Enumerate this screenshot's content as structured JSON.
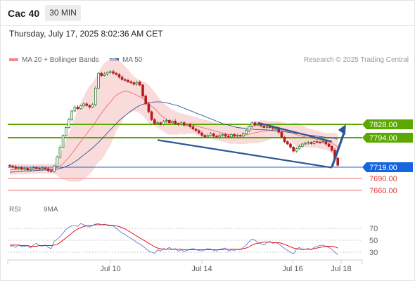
{
  "header": {
    "symbol": "Cac 40",
    "timeframe": "30 MIN"
  },
  "datetime": "Thursday, July 17, 2025 8:02:36 AM CET",
  "credit": "Research © 2025 Trading Central",
  "legend": [
    {
      "label": "MA 20 + Bollinger Bands",
      "color": "#f28a8a"
    },
    {
      "label": "MA 50",
      "color": "#2e5c9a"
    }
  ],
  "rsi_legend": [
    {
      "label": "RSI",
      "color": "#5b80d6"
    },
    {
      "label": "9MA",
      "color": "#e00000"
    }
  ],
  "colors": {
    "bull": "#2e7d32",
    "bear": "#b71c1c",
    "resistance": "#5aa800",
    "support": "#f4a3a3",
    "current": "#1565e0",
    "trend": "#2f5597"
  },
  "chart_data": [
    {
      "type": "candlestick",
      "x_ticks": [
        "Jul 10",
        "Jul 14",
        "Jul 16",
        "Jul 18"
      ],
      "levels": [
        {
          "value": 7828.0,
          "label": "7828.00",
          "kind": "resistance"
        },
        {
          "value": 7794.0,
          "label": "7794.00",
          "kind": "resistance"
        },
        {
          "value": 7719.0,
          "label": "7719.00",
          "kind": "current"
        },
        {
          "value": 7690.0,
          "label": "7690.00",
          "kind": "support"
        },
        {
          "value": 7660.0,
          "label": "7660.00",
          "kind": "support"
        }
      ],
      "close": [
        7722,
        7720,
        7716,
        7718,
        7714,
        7716,
        7712,
        7715,
        7718,
        7716,
        7714,
        7717,
        7715,
        7710,
        7708,
        7722,
        7745,
        7770,
        7800,
        7820,
        7840,
        7862,
        7872,
        7868,
        7875,
        7880,
        7876,
        7872,
        7878,
        7920,
        7958,
        7952,
        7956,
        7960,
        7962,
        7958,
        7955,
        7948,
        7942,
        7940,
        7936,
        7934,
        7930,
        7935,
        7928,
        7900,
        7880,
        7860,
        7840,
        7830,
        7832,
        7828,
        7835,
        7838,
        7832,
        7836,
        7830,
        7828,
        7832,
        7826,
        7828,
        7822,
        7816,
        7812,
        7806,
        7800,
        7796,
        7800,
        7804,
        7798,
        7796,
        7800,
        7802,
        7798,
        7796,
        7802,
        7798,
        7800,
        7798,
        7804,
        7812,
        7822,
        7832,
        7826,
        7828,
        7824,
        7820,
        7822,
        7820,
        7818,
        7818,
        7808,
        7795,
        7784,
        7778,
        7770,
        7760,
        7766,
        7772,
        7778,
        7780,
        7782,
        7779,
        7784,
        7783,
        7782,
        7784,
        7778,
        7772,
        7762,
        7742,
        7724
      ],
      "ma20": [
        7712,
        7713,
        7713,
        7714,
        7714,
        7714,
        7714,
        7714,
        7714,
        7714,
        7715,
        7715,
        7715,
        7715,
        7715,
        7715,
        7718,
        7722,
        7728,
        7736,
        7744,
        7754,
        7764,
        7774,
        7784,
        7794,
        7804,
        7814,
        7822,
        7834,
        7846,
        7856,
        7866,
        7876,
        7884,
        7894,
        7902,
        7906,
        7910,
        7912,
        7912,
        7908,
        7906,
        7902,
        7898,
        7894,
        7888,
        7880,
        7874,
        7868,
        7860,
        7852,
        7846,
        7840,
        7836,
        7834,
        7832,
        7830,
        7830,
        7828,
        7828,
        7827,
        7826,
        7824,
        7822,
        7820,
        7818,
        7816,
        7814,
        7812,
        7810,
        7808,
        7806,
        7804,
        7802,
        7801,
        7801,
        7800,
        7800,
        7800,
        7801,
        7803,
        7805,
        7807,
        7808,
        7810,
        7811,
        7812,
        7813,
        7814,
        7815,
        7815,
        7814,
        7812,
        7810,
        7808,
        7805,
        7802,
        7800,
        7798,
        7796,
        7794,
        7792,
        7791,
        7790,
        7788,
        7786,
        7785,
        7783,
        7780,
        7776,
        7770
      ],
      "bb_upper": [
        7725,
        7726,
        7726,
        7727,
        7727,
        7727,
        7727,
        7726,
        7726,
        7726,
        7727,
        7727,
        7727,
        7727,
        7727,
        7727,
        7738,
        7752,
        7768,
        7786,
        7806,
        7826,
        7846,
        7866,
        7884,
        7900,
        7914,
        7926,
        7934,
        7946,
        7960,
        7974,
        7984,
        7990,
        7994,
        7996,
        7994,
        7990,
        7984,
        7976,
        7968,
        7958,
        7950,
        7944,
        7940,
        7938,
        7934,
        7928,
        7920,
        7910,
        7900,
        7890,
        7882,
        7876,
        7870,
        7866,
        7862,
        7858,
        7856,
        7854,
        7852,
        7850,
        7848,
        7846,
        7844,
        7842,
        7840,
        7838,
        7836,
        7834,
        7832,
        7830,
        7828,
        7826,
        7825,
        7824,
        7823,
        7822,
        7822,
        7822,
        7824,
        7826,
        7830,
        7834,
        7836,
        7838,
        7838,
        7838,
        7836,
        7836,
        7836,
        7836,
        7834,
        7832,
        7830,
        7830,
        7832,
        7832,
        7830,
        7826,
        7822,
        7818,
        7816,
        7814,
        7812,
        7810,
        7808,
        7806,
        7806,
        7806,
        7806,
        7804
      ],
      "bb_lower": [
        7699,
        7700,
        7700,
        7701,
        7701,
        7701,
        7701,
        7702,
        7702,
        7702,
        7703,
        7703,
        7703,
        7703,
        7703,
        7703,
        7698,
        7692,
        7688,
        7686,
        7682,
        7682,
        7682,
        7682,
        7684,
        7688,
        7694,
        7702,
        7710,
        7722,
        7732,
        7738,
        7748,
        7762,
        7774,
        7792,
        7810,
        7822,
        7836,
        7848,
        7856,
        7858,
        7862,
        7860,
        7856,
        7850,
        7842,
        7832,
        7828,
        7826,
        7820,
        7814,
        7810,
        7804,
        7802,
        7802,
        7802,
        7802,
        7804,
        7802,
        7804,
        7804,
        7804,
        7802,
        7800,
        7798,
        7796,
        7794,
        7792,
        7790,
        7788,
        7786,
        7784,
        7782,
        7779,
        7778,
        7779,
        7778,
        7778,
        7778,
        7778,
        7780,
        7780,
        7780,
        7780,
        7782,
        7784,
        7786,
        7790,
        7792,
        7794,
        7794,
        7794,
        7792,
        7790,
        7786,
        7778,
        7772,
        7770,
        7770,
        7770,
        7770,
        7768,
        7768,
        7768,
        7766,
        7764,
        7764,
        7760,
        7754,
        7746,
        7736
      ],
      "ma50": [
        7706,
        7707,
        7707,
        7708,
        7708,
        7709,
        7709,
        7710,
        7710,
        7711,
        7711,
        7712,
        7712,
        7712,
        7712,
        7713,
        7714,
        7716,
        7718,
        7721,
        7724,
        7728,
        7733,
        7738,
        7744,
        7750,
        7756,
        7762,
        7768,
        7775,
        7782,
        7790,
        7798,
        7806,
        7814,
        7822,
        7830,
        7838,
        7844,
        7850,
        7856,
        7862,
        7867,
        7872,
        7876,
        7879,
        7881,
        7883,
        7884,
        7885,
        7885,
        7885,
        7884,
        7883,
        7881,
        7879,
        7877,
        7875,
        7872,
        7869,
        7866,
        7863,
        7860,
        7857,
        7854,
        7851,
        7848,
        7845,
        7842,
        7839,
        7836,
        7833,
        7830,
        7828,
        7826,
        7824,
        7822,
        7820,
        7819,
        7818,
        7817,
        7816,
        7816,
        7815,
        7815,
        7815,
        7814,
        7814,
        7813,
        7812,
        7812,
        7811,
        7810,
        7809,
        7808,
        7807,
        7806,
        7805,
        7804,
        7803,
        7802,
        7801,
        7800,
        7799,
        7798,
        7797,
        7796,
        7795,
        7794,
        7793,
        7792,
        7790
      ],
      "trendlines": [
        {
          "from": [
            50,
            7788
          ],
          "to": [
            109,
            7718
          ]
        },
        {
          "from": [
            84,
            7832
          ],
          "to": [
            109,
            7784
          ]
        }
      ],
      "forecast_arrow": {
        "from": [
          109,
          7719
        ],
        "to": [
          114,
          7828
        ]
      }
    },
    {
      "type": "line",
      "series_names": [
        "RSI",
        "9MA"
      ],
      "y_ticks": [
        70,
        50,
        30
      ],
      "ylim": [
        20,
        85
      ],
      "rsi": [
        40,
        41,
        38,
        42,
        39,
        40,
        41,
        37,
        42,
        45,
        41,
        40,
        42,
        38,
        36,
        48,
        52,
        56,
        62,
        68,
        72,
        74,
        75,
        73,
        78,
        76,
        74,
        72,
        75,
        77,
        78,
        76,
        77,
        75,
        74,
        74,
        70,
        66,
        62,
        60,
        56,
        53,
        50,
        46,
        44,
        40,
        36,
        32,
        30,
        28,
        34,
        32,
        36,
        35,
        38,
        34,
        36,
        32,
        34,
        31,
        33,
        35,
        36,
        34,
        33,
        32,
        34,
        36,
        35,
        33,
        32,
        35,
        36,
        37,
        32,
        34,
        33,
        35,
        34,
        38,
        42,
        48,
        52,
        50,
        46,
        44,
        42,
        46,
        48,
        45,
        46,
        44,
        40,
        36,
        33,
        30,
        27,
        35,
        38,
        34,
        35,
        36,
        34,
        38,
        40,
        41,
        42,
        40,
        38,
        35,
        30,
        26
      ],
      "ma9": [
        42,
        42,
        42,
        42,
        41,
        41,
        41,
        40,
        40,
        40,
        41,
        41,
        41,
        41,
        41,
        42,
        43,
        46,
        50,
        54,
        58,
        62,
        66,
        69,
        71,
        73,
        74,
        75,
        75,
        76,
        76,
        76,
        76,
        76,
        75,
        75,
        74,
        73,
        71,
        69,
        66,
        63,
        60,
        57,
        54,
        51,
        48,
        45,
        42,
        39,
        37,
        36,
        35,
        35,
        35,
        35,
        35,
        35,
        35,
        34,
        34,
        34,
        34,
        34,
        34,
        34,
        34,
        34,
        34,
        34,
        34,
        34,
        34,
        35,
        35,
        35,
        35,
        35,
        35,
        36,
        37,
        39,
        42,
        44,
        45,
        46,
        47,
        47,
        47,
        46,
        46,
        46,
        45,
        43,
        41,
        39,
        37,
        36,
        35,
        35,
        35,
        35,
        35,
        36,
        37,
        38,
        39,
        40,
        40,
        40,
        39,
        37
      ]
    }
  ]
}
